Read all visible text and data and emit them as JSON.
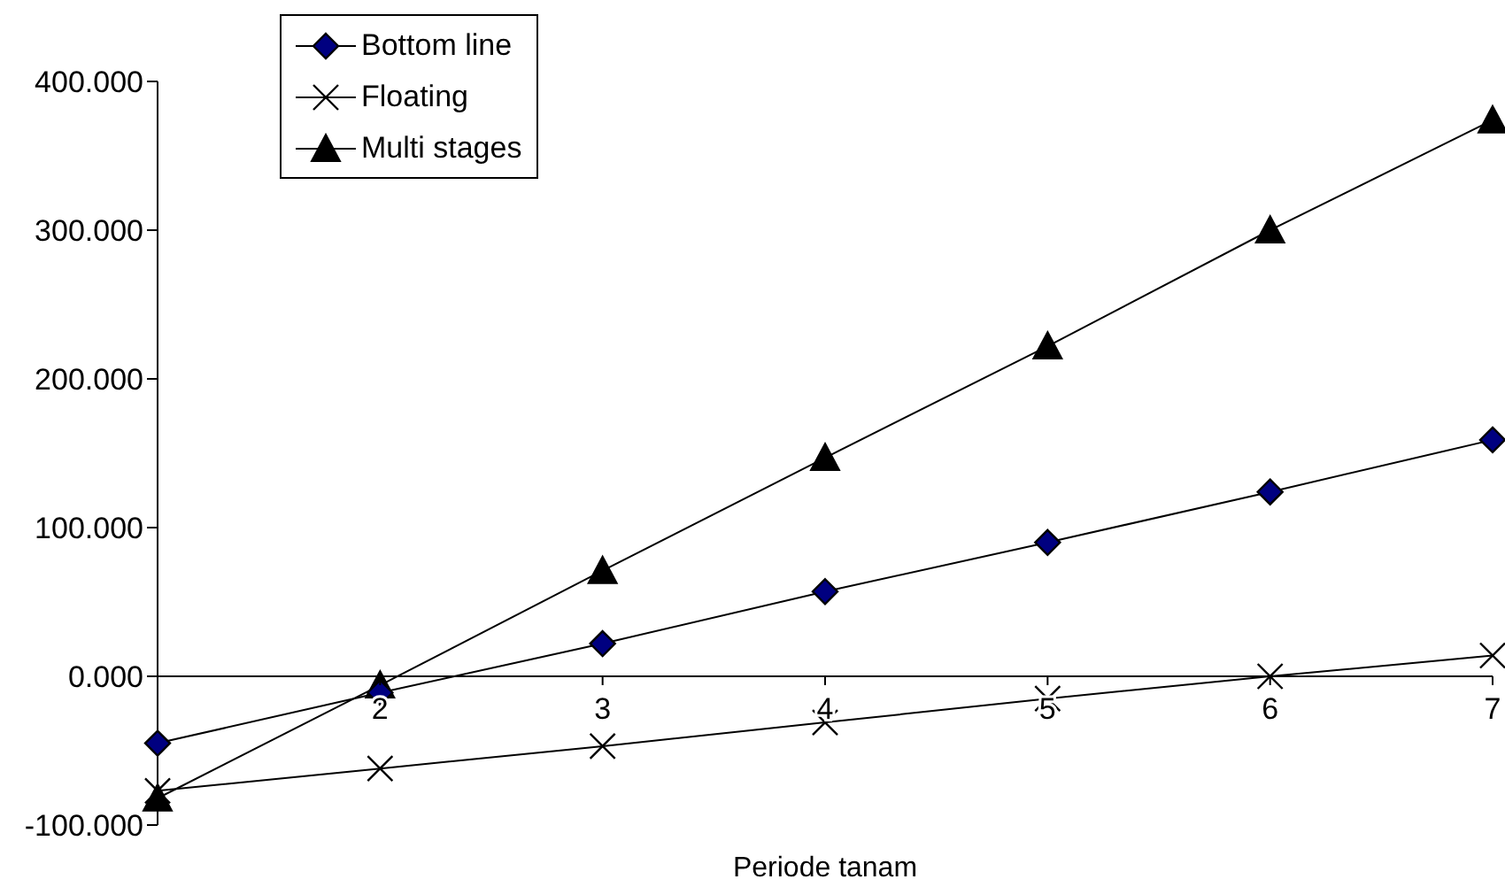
{
  "chart_data": {
    "type": "line",
    "xlabel": "Periode tanam",
    "categories": [
      null,
      "2",
      "3",
      "4",
      "5",
      "6",
      "7"
    ],
    "series": [
      {
        "name": "Bottom line",
        "color": "#000000",
        "marker": "diamond",
        "values": [
          -45,
          -11,
          22,
          57,
          90,
          124,
          159
        ]
      },
      {
        "name": "Floating",
        "color": "#000000",
        "marker": "cross",
        "values": [
          -77,
          -62,
          -47,
          -31,
          -15,
          0,
          14
        ]
      },
      {
        "name": "Multi stages",
        "color": "#000000",
        "marker": "triangle",
        "values": [
          -82,
          -6,
          71,
          147,
          222,
          300,
          374
        ]
      }
    ],
    "ylim": [
      -100,
      400
    ],
    "yticks": [
      {
        "value": -100,
        "label": "-100.000"
      },
      {
        "value": 0,
        "label": "0.000"
      },
      {
        "value": 100,
        "label": "100.000"
      },
      {
        "value": 200,
        "label": "200.000"
      },
      {
        "value": 300,
        "label": "300.000"
      },
      {
        "value": 400,
        "label": "400.000"
      }
    ],
    "grid": false,
    "legend": "top left",
    "line_style": "solid"
  }
}
